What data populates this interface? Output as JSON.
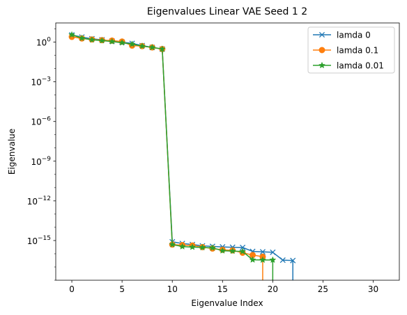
{
  "chart_data": {
    "type": "line",
    "title": "Eigenvalues Linear VAE Seed 1 2",
    "xlabel": "Eigenvalue Index",
    "ylabel": "Eigenvalue",
    "xlim": [
      -1.6,
      32.6
    ],
    "ylim_log10": [
      -18.0,
      1.45
    ],
    "yscale": "log",
    "grid": false,
    "legend_position": "top-right",
    "xticks": [
      {
        "value": 0,
        "label": "0"
      },
      {
        "value": 5,
        "label": "5"
      },
      {
        "value": 10,
        "label": "10"
      },
      {
        "value": 15,
        "label": "15"
      },
      {
        "value": 20,
        "label": "20"
      },
      {
        "value": 25,
        "label": "25"
      },
      {
        "value": 30,
        "label": "30"
      }
    ],
    "yticks": [
      {
        "exp": 0,
        "base": "10",
        "sup": "0"
      },
      {
        "exp": -3,
        "base": "10",
        "sup": "−3"
      },
      {
        "exp": -6,
        "base": "10",
        "sup": "−6"
      },
      {
        "exp": -9,
        "base": "10",
        "sup": "−9"
      },
      {
        "exp": -12,
        "base": "10",
        "sup": "−12"
      },
      {
        "exp": -15,
        "base": "10",
        "sup": "−15"
      }
    ],
    "series": [
      {
        "name": "lamda 0",
        "color": "#1f77b4",
        "marker": "x",
        "x": [
          0,
          1,
          2,
          3,
          4,
          5,
          6,
          7,
          8,
          9,
          10,
          11,
          12,
          13,
          14,
          15,
          16,
          17,
          18,
          19,
          20,
          21,
          22
        ],
        "y": [
          3.5,
          2.4,
          1.8,
          1.5,
          1.2,
          1.0,
          0.8,
          0.55,
          0.4,
          0.3,
          8e-16,
          6e-16,
          5e-16,
          4e-16,
          3.6e-16,
          3.3e-16,
          3.1e-16,
          3e-16,
          1.5e-16,
          1.4e-16,
          1.3e-16,
          3.3e-17,
          3.1e-17
        ],
        "drop_to_zero_after_last": true
      },
      {
        "name": "lamda 0.1",
        "color": "#ff7f0e",
        "marker": "o",
        "x": [
          0,
          1,
          2,
          3,
          4,
          5,
          6,
          7,
          8,
          9,
          10,
          11,
          12,
          13,
          14,
          15,
          16,
          17,
          18,
          19
        ],
        "y": [
          2.5,
          1.9,
          1.6,
          1.4,
          1.3,
          1.1,
          0.55,
          0.5,
          0.4,
          0.3,
          5e-16,
          4.5e-16,
          4.2e-16,
          3.2e-16,
          2.5e-16,
          2e-16,
          1.8e-16,
          1.2e-16,
          8e-17,
          6e-17
        ],
        "drop_to_zero_after_last": true
      },
      {
        "name": "lamda 0.01",
        "color": "#2ca02c",
        "marker": "*",
        "x": [
          0,
          1,
          2,
          3,
          4,
          5,
          6,
          7,
          8,
          9,
          10,
          11,
          12,
          13,
          14,
          15,
          16,
          17,
          18,
          19,
          20
        ],
        "y": [
          3.6,
          2.0,
          1.5,
          1.3,
          1.1,
          0.9,
          0.7,
          0.5,
          0.4,
          0.3,
          5e-16,
          3.5e-16,
          3.2e-16,
          3e-16,
          2.8e-16,
          1.7e-16,
          1.6e-16,
          1.5e-16,
          3.5e-17,
          3.4e-17,
          3.4e-17
        ],
        "drop_to_zero_after_last": true
      }
    ]
  }
}
